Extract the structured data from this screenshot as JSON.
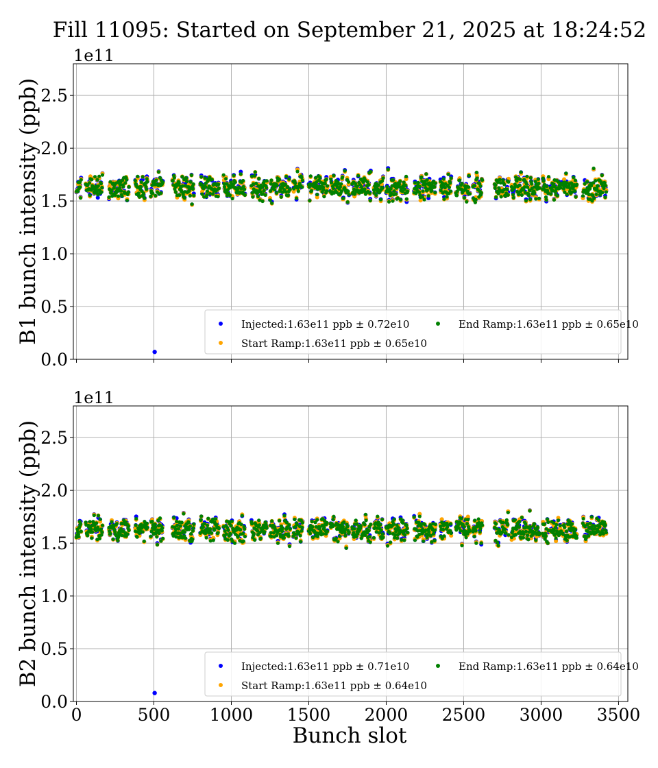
{
  "title": "Fill 11095: Started on September 21, 2025 at 18:24:52",
  "xlabel": "Bunch slot",
  "chart_data": [
    {
      "type": "scatter",
      "name": "B1",
      "ylabel": "B1 bunch intensity (ppb)",
      "scale_label": "1e11",
      "xlim": [
        -20,
        3560
      ],
      "ylim": [
        0.0,
        2.8
      ],
      "x_ticks": [
        0,
        500,
        1000,
        1500,
        2000,
        2500,
        3000,
        3500
      ],
      "y_ticks": [
        0.0,
        0.5,
        1.0,
        1.5,
        2.0,
        2.5
      ],
      "y_tick_labels": [
        "0.0",
        "0.5",
        "1.0",
        "1.5",
        "2.0",
        "2.5"
      ],
      "show_x_tick_labels": false,
      "grid": true,
      "legend_position": "lower-right",
      "series": [
        {
          "key": "injected",
          "label": "Injected:1.63e11 ppb ± 0.72e10",
          "color": "#0000ff",
          "mean": 1.63,
          "std": 0.072
        },
        {
          "key": "start_ramp",
          "label": "Start Ramp:1.63e11 ppb ± 0.65e10",
          "color": "#ffa500",
          "mean": 1.63,
          "std": 0.065
        },
        {
          "key": "end_ramp",
          "label": "End Ramp:1.63e11 ppb ± 0.65e10",
          "color": "#008000",
          "mean": 1.63,
          "std": 0.065
        }
      ],
      "trains": [
        [
          0,
          30
        ],
        [
          60,
          170
        ],
        [
          210,
          340
        ],
        [
          380,
          460
        ],
        [
          480,
          560
        ],
        [
          620,
          760
        ],
        [
          800,
          920
        ],
        [
          950,
          1090
        ],
        [
          1130,
          1230
        ],
        [
          1250,
          1380
        ],
        [
          1400,
          1460
        ],
        [
          1500,
          1620
        ],
        [
          1640,
          1760
        ],
        [
          1780,
          1900
        ],
        [
          1920,
          1980
        ],
        [
          2000,
          2140
        ],
        [
          2180,
          2320
        ],
        [
          2350,
          2420
        ],
        [
          2450,
          2540
        ],
        [
          2560,
          2620
        ],
        [
          2700,
          2790
        ],
        [
          2810,
          2990
        ],
        [
          3010,
          3050
        ],
        [
          3060,
          3130
        ],
        [
          3140,
          3230
        ],
        [
          3270,
          3420
        ]
      ],
      "outliers": [
        {
          "x": 505,
          "y": 0.07,
          "series": "injected"
        }
      ]
    },
    {
      "type": "scatter",
      "name": "B2",
      "ylabel": "B2 bunch intensity (ppb)",
      "scale_label": "1e11",
      "xlim": [
        -20,
        3560
      ],
      "ylim": [
        0.0,
        2.8
      ],
      "x_ticks": [
        0,
        500,
        1000,
        1500,
        2000,
        2500,
        3000,
        3500
      ],
      "x_tick_labels": [
        "0",
        "500",
        "1000",
        "1500",
        "2000",
        "2500",
        "3000",
        "3500"
      ],
      "y_ticks": [
        0.0,
        0.5,
        1.0,
        1.5,
        2.0,
        2.5
      ],
      "y_tick_labels": [
        "0.0",
        "0.5",
        "1.0",
        "1.5",
        "2.0",
        "2.5"
      ],
      "show_x_tick_labels": true,
      "grid": true,
      "legend_position": "lower-right",
      "series": [
        {
          "key": "injected",
          "label": "Injected:1.63e11 ppb ± 0.71e10",
          "color": "#0000ff",
          "mean": 1.63,
          "std": 0.071
        },
        {
          "key": "start_ramp",
          "label": "Start Ramp:1.63e11 ppb ± 0.64e10",
          "color": "#ffa500",
          "mean": 1.63,
          "std": 0.064
        },
        {
          "key": "end_ramp",
          "label": "End Ramp:1.63e11 ppb ± 0.64e10",
          "color": "#008000",
          "mean": 1.63,
          "std": 0.064
        }
      ],
      "trains": [
        [
          0,
          30
        ],
        [
          60,
          170
        ],
        [
          210,
          340
        ],
        [
          380,
          460
        ],
        [
          480,
          560
        ],
        [
          620,
          760
        ],
        [
          800,
          920
        ],
        [
          950,
          1090
        ],
        [
          1130,
          1230
        ],
        [
          1250,
          1380
        ],
        [
          1400,
          1460
        ],
        [
          1500,
          1620
        ],
        [
          1640,
          1760
        ],
        [
          1780,
          1900
        ],
        [
          1920,
          1980
        ],
        [
          2000,
          2140
        ],
        [
          2180,
          2320
        ],
        [
          2350,
          2420
        ],
        [
          2450,
          2540
        ],
        [
          2560,
          2620
        ],
        [
          2700,
          2790
        ],
        [
          2810,
          2990
        ],
        [
          3010,
          3050
        ],
        [
          3060,
          3130
        ],
        [
          3140,
          3230
        ],
        [
          3270,
          3420
        ]
      ],
      "outliers": [
        {
          "x": 505,
          "y": 0.08,
          "series": "injected"
        }
      ]
    }
  ]
}
